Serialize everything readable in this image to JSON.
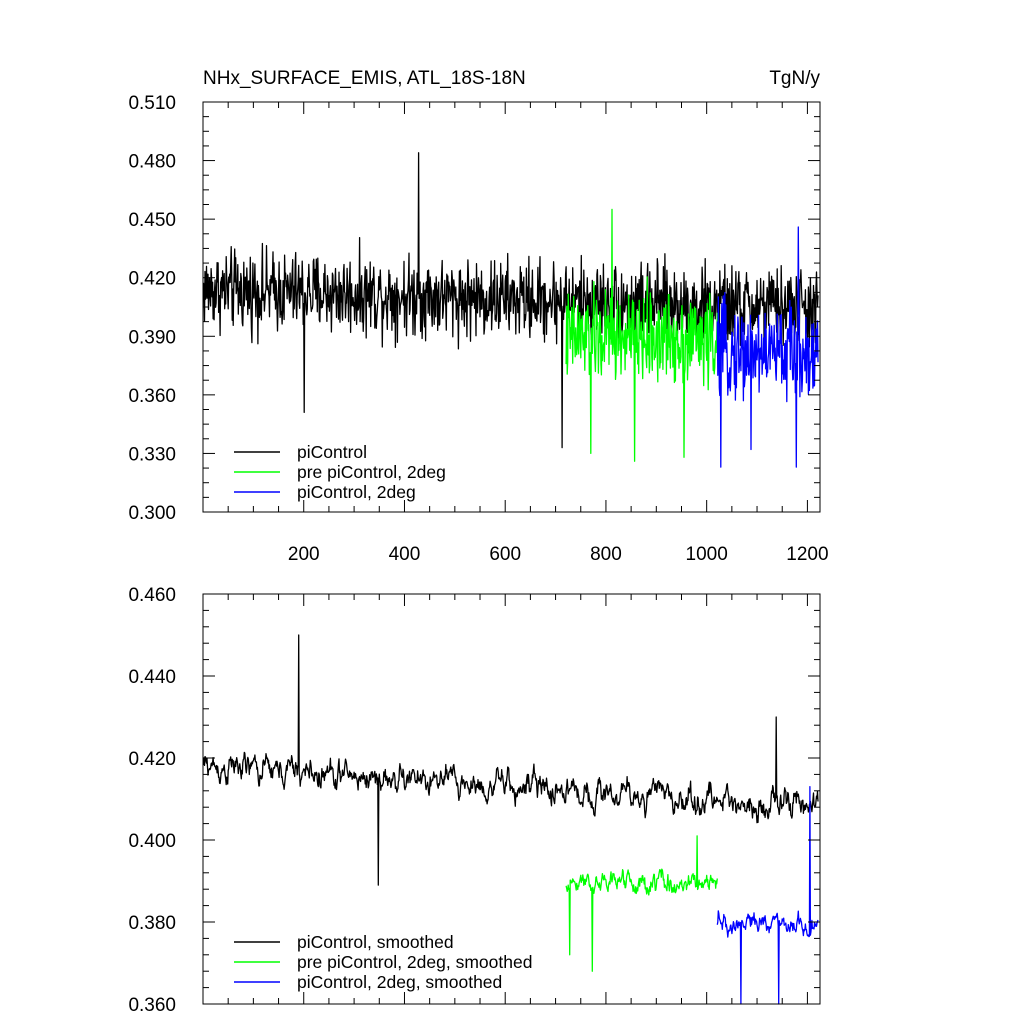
{
  "figure": {
    "title": "NHx_SURFACE_EMIS, ATL_18S-18N",
    "units": "TgN/y"
  },
  "chart_data": [
    {
      "type": "line",
      "panel": "top",
      "xlim": [
        0,
        1225
      ],
      "ylim": [
        0.3,
        0.51
      ],
      "x_ticks": [
        200,
        400,
        600,
        800,
        1000,
        1200
      ],
      "y_ticks": [
        "0.300",
        "0.330",
        "0.360",
        "0.390",
        "0.420",
        "0.450",
        "0.480",
        "0.510"
      ],
      "legend_position": "bottom-left",
      "series": [
        {
          "name": "piControl",
          "color": "#000000",
          "x_start": 1,
          "x_end": 1221,
          "mean": 0.414,
          "trend_end": 0.404,
          "amplitude": 0.026,
          "extremes": [
            [
              201,
              0.351
            ],
            [
              428,
              0.484
            ],
            [
              713,
              0.333
            ]
          ]
        },
        {
          "name": "pre piControl, 2deg",
          "color": "#00ff00",
          "x_start": 721,
          "x_end": 1021,
          "mean": 0.389,
          "trend_end": 0.389,
          "amplitude": 0.03,
          "extremes": [
            [
              770,
              0.33
            ],
            [
              812,
              0.455
            ],
            [
              857,
              0.326
            ],
            [
              955,
              0.328
            ]
          ]
        },
        {
          "name": "piControl, 2deg",
          "color": "#0000ff",
          "x_start": 1021,
          "x_end": 1221,
          "mean": 0.382,
          "trend_end": 0.382,
          "amplitude": 0.03,
          "extremes": [
            [
              1028,
              0.323
            ],
            [
              1088,
              0.332
            ],
            [
              1178,
              0.323
            ],
            [
              1182,
              0.446
            ]
          ]
        }
      ]
    },
    {
      "type": "line",
      "panel": "bottom",
      "xlim": [
        0,
        1225
      ],
      "ylim": [
        0.36,
        0.46
      ],
      "y_ticks": [
        "0.360",
        "0.380",
        "0.400",
        "0.420",
        "0.440",
        "0.460"
      ],
      "legend_position": "bottom-left",
      "series": [
        {
          "name": "piControl, smoothed",
          "color": "#000000",
          "x_start": 1,
          "x_end": 1221,
          "mean": 0.418,
          "trend_end": 0.408,
          "amplitude": 0.01,
          "extremes": [
            [
              190,
              0.45
            ],
            [
              348,
              0.389
            ],
            [
              1138,
              0.43
            ]
          ]
        },
        {
          "name": "pre piControl, 2deg, smoothed",
          "color": "#00ff00",
          "x_start": 721,
          "x_end": 1021,
          "mean": 0.39,
          "trend_end": 0.389,
          "amplitude": 0.008,
          "extremes": [
            [
              728,
              0.372
            ],
            [
              773,
              0.368
            ],
            [
              981,
              0.401
            ]
          ]
        },
        {
          "name": "piControl, 2deg, smoothed",
          "color": "#0000ff",
          "x_start": 1021,
          "x_end": 1221,
          "mean": 0.38,
          "trend_end": 0.38,
          "amplitude": 0.008,
          "extremes": [
            [
              1068,
              0.36
            ],
            [
              1143,
              0.36
            ],
            [
              1205,
              0.413
            ]
          ]
        }
      ]
    }
  ]
}
